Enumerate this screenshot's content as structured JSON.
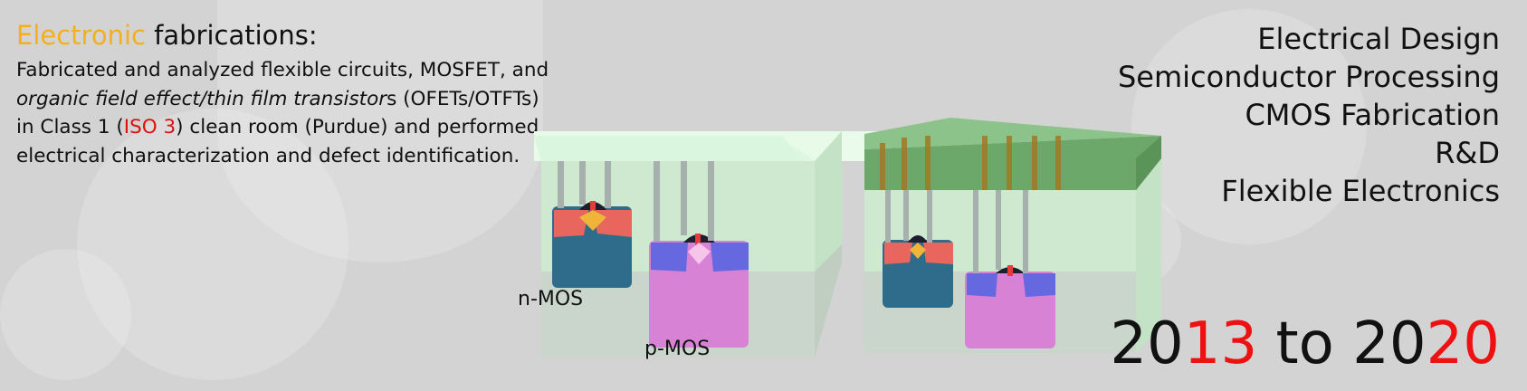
{
  "title": {
    "highlight": "Electronic",
    "rest": " fabrications:"
  },
  "description": {
    "line1": "Fabricated and analyzed flexible circuits, MOSFET, and",
    "line2_italic": "organic field effect/thin film transistor",
    "line2_rest": "s (OFETs/OTFTs)",
    "line3_pre": "in Class 1 (",
    "line3_red": "ISO 3",
    "line3_post": ") clean room (Purdue) and performed",
    "line4": "electrical characterization and defect identification."
  },
  "skills": [
    "Electrical Design",
    "Semiconductor Processing",
    "CMOS Fabrication",
    "R&D",
    "Flexible Electronics"
  ],
  "years": {
    "a": "20",
    "b": "13",
    "c": " to ",
    "d": "20",
    "e": "20"
  },
  "labels": {
    "nmos": "n-MOS",
    "pmos": "p-MOS"
  },
  "colors": {
    "highlight": "#f2b01e",
    "red": "#e01010",
    "oxide": "#d6f5da",
    "nwell": "#2f6b8a",
    "pwell": "#d882d6",
    "metal": "#6ba86a"
  }
}
